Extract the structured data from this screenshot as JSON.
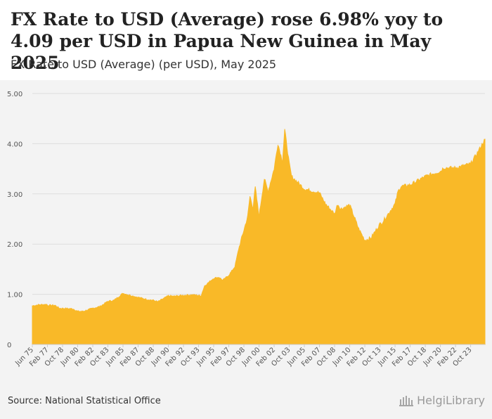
{
  "header": {
    "title": "FX Rate to USD (Average) rose 6.98% yoy to 4.09 per USD in Papua New Guinea in May 2025",
    "subtitle": "FX Rate to USD (Average) (per USD), May 2025"
  },
  "footer": {
    "source": "Source: National Statistical Office",
    "logo_text": "HelgiLibrary"
  },
  "colors": {
    "fill": "#f9b928",
    "grid": "#dddddd",
    "text": "#555555"
  },
  "chart_data": {
    "type": "area",
    "title": "FX Rate to USD (Average) (per USD), May 2025",
    "xlabel": "",
    "ylabel": "",
    "ylim": [
      0,
      5
    ],
    "yticks": [
      0,
      1,
      2,
      3,
      4,
      5
    ],
    "ytick_labels": [
      "0",
      "1.00",
      "2.00",
      "3.00",
      "4.00",
      "5.00"
    ],
    "x_range": [
      "Jun 75",
      "May 25"
    ],
    "xtick_labels": [
      "Jun 75",
      "Feb 77",
      "Oct 78",
      "Jun 80",
      "Feb 82",
      "Oct 83",
      "Jun 85",
      "Feb 87",
      "Oct 88",
      "Jun 90",
      "Feb 92",
      "Oct 93",
      "Jun 95",
      "Feb 97",
      "Oct 98",
      "Jun 00",
      "Feb 02",
      "Oct 03",
      "Jun 05",
      "Feb 07",
      "Oct 08",
      "Jun 10",
      "Feb 12",
      "Oct 13",
      "Jun 15",
      "Feb 17",
      "Oct 18",
      "Jun 20",
      "Feb 22",
      "Oct 23"
    ],
    "series": [
      {
        "name": "FX Rate to USD (Average)",
        "points": [
          [
            "Jun 75",
            0.77
          ],
          [
            "Feb 76",
            0.79
          ],
          [
            "Jan 77",
            0.8
          ],
          [
            "Feb 77",
            0.78
          ],
          [
            "Dec 77",
            0.78
          ],
          [
            "Jun 78",
            0.72
          ],
          [
            "Oct 78",
            0.72
          ],
          [
            "Dec 79",
            0.71
          ],
          [
            "Jun 80",
            0.66
          ],
          [
            "Jan 81",
            0.66
          ],
          [
            "Feb 82",
            0.72
          ],
          [
            "Dec 82",
            0.76
          ],
          [
            "Oct 83",
            0.86
          ],
          [
            "Jun 84",
            0.88
          ],
          [
            "Jun 85",
            1.02
          ],
          [
            "Jan 86",
            0.99
          ],
          [
            "Feb 87",
            0.94
          ],
          [
            "Jan 88",
            0.9
          ],
          [
            "Oct 88",
            0.88
          ],
          [
            "Apr 89",
            0.85
          ],
          [
            "Jun 90",
            0.97
          ],
          [
            "Jan 91",
            0.96
          ],
          [
            "Feb 92",
            0.98
          ],
          [
            "Jan 93",
            0.99
          ],
          [
            "Oct 93",
            0.98
          ],
          [
            "Jan 94",
            0.96
          ],
          [
            "Jun 94",
            1.17
          ],
          [
            "Jun 95",
            1.32
          ],
          [
            "Jan 96",
            1.34
          ],
          [
            "Jun 96",
            1.28
          ],
          [
            "Feb 97",
            1.38
          ],
          [
            "Oct 97",
            1.55
          ],
          [
            "Mar 98",
            1.9
          ],
          [
            "Oct 98",
            2.28
          ],
          [
            "Mar 99",
            2.55
          ],
          [
            "Jun 99",
            2.95
          ],
          [
            "Oct 99",
            2.72
          ],
          [
            "Jan 00",
            3.13
          ],
          [
            "Jun 00",
            2.55
          ],
          [
            "Jan 01",
            3.3
          ],
          [
            "Jun 01",
            3.05
          ],
          [
            "Feb 02",
            3.5
          ],
          [
            "Jul 02",
            4.0
          ],
          [
            "Jan 03",
            3.65
          ],
          [
            "Apr 03",
            4.28
          ],
          [
            "Oct 03",
            3.6
          ],
          [
            "Jan 04",
            3.35
          ],
          [
            "Jun 05",
            3.1
          ],
          [
            "Feb 07",
            3.02
          ],
          [
            "Oct 07",
            2.8
          ],
          [
            "Oct 08",
            2.6
          ],
          [
            "Feb 09",
            2.8
          ],
          [
            "Jun 09",
            2.7
          ],
          [
            "Jun 10",
            2.78
          ],
          [
            "Jun 11",
            2.3
          ],
          [
            "Feb 12",
            2.08
          ],
          [
            "Oct 12",
            2.12
          ],
          [
            "Oct 13",
            2.4
          ],
          [
            "Jan 14",
            2.43
          ],
          [
            "Jun 15",
            2.8
          ],
          [
            "Oct 15",
            3.05
          ],
          [
            "Feb 16",
            3.15
          ],
          [
            "Feb 17",
            3.18
          ],
          [
            "Oct 18",
            3.35
          ],
          [
            "Jun 20",
            3.45
          ],
          [
            "Oct 20",
            3.52
          ],
          [
            "Feb 22",
            3.52
          ],
          [
            "Oct 23",
            3.6
          ],
          [
            "Jul 24",
            3.82
          ],
          [
            "May 25",
            4.09
          ]
        ]
      }
    ]
  }
}
